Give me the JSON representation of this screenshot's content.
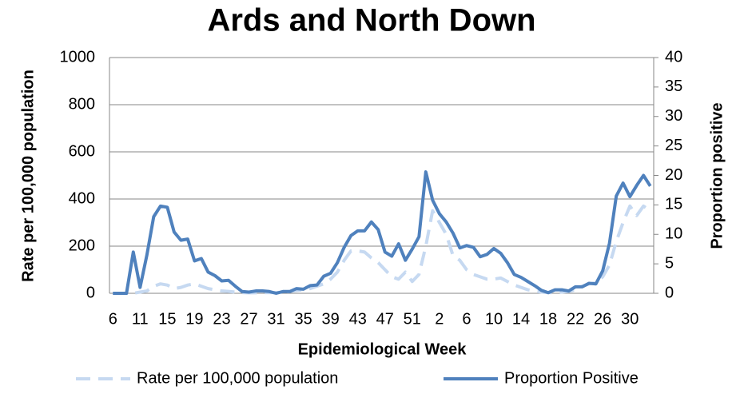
{
  "chart_data": {
    "type": "line",
    "title": "Ards and North Down",
    "x_label": "Epidemiological Week",
    "y_label": "Rate per 100,000 population",
    "y2_label": "Proportion positive",
    "categories": [
      "6",
      null,
      null,
      null,
      "11",
      null,
      null,
      null,
      "15",
      null,
      null,
      null,
      "19",
      null,
      null,
      null,
      "23",
      null,
      null,
      null,
      "27",
      null,
      null,
      null,
      "31",
      null,
      null,
      null,
      "35",
      null,
      null,
      null,
      "39",
      null,
      null,
      null,
      "43",
      null,
      null,
      null,
      "47",
      null,
      null,
      null,
      "51",
      null,
      null,
      null,
      "2",
      null,
      null,
      null,
      "6",
      null,
      null,
      null,
      "10",
      null,
      null,
      null,
      "14",
      null,
      null,
      null,
      "18",
      null,
      null,
      null,
      "22",
      null,
      null,
      null,
      "26",
      null,
      null,
      null,
      "30",
      null,
      null,
      null
    ],
    "series": [
      {
        "name": "Rate per 100,000 population",
        "color": "#c6d9f1",
        "dashed": true,
        "values": [
          0,
          0,
          0,
          0,
          5,
          10,
          30,
          40,
          35,
          20,
          25,
          35,
          40,
          30,
          20,
          15,
          10,
          8,
          5,
          3,
          2,
          2,
          3,
          3,
          3,
          5,
          8,
          12,
          15,
          20,
          30,
          40,
          60,
          90,
          140,
          180,
          180,
          175,
          150,
          130,
          100,
          70,
          60,
          90,
          50,
          80,
          200,
          350,
          300,
          250,
          160,
          140,
          100,
          80,
          70,
          60,
          60,
          65,
          50,
          35,
          25,
          15,
          10,
          5,
          3,
          3,
          5,
          8,
          15,
          30,
          40,
          45,
          70,
          120,
          220,
          300,
          370,
          330,
          370,
          350
        ]
      },
      {
        "name": "Proportion Positive",
        "color": "#4f81bd",
        "axis": "y2",
        "values": [
          0,
          0,
          0,
          7,
          1,
          6.5,
          13,
          14.8,
          14.6,
          10.4,
          9,
          9.2,
          5.5,
          5.9,
          3.6,
          3,
          2.1,
          2.2,
          1.2,
          0.3,
          0.2,
          0.4,
          0.4,
          0.3,
          0,
          0.3,
          0.3,
          0.8,
          0.7,
          1.3,
          1.4,
          2.9,
          3.4,
          5.2,
          7.8,
          9.8,
          10.6,
          10.6,
          12.1,
          10.8,
          7,
          6.3,
          8.4,
          5.6,
          7.5,
          9.6,
          20.6,
          15.8,
          13.5,
          12.1,
          10.2,
          7.7,
          8.1,
          7.8,
          6.2,
          6.6,
          7.6,
          6.8,
          5.2,
          3.2,
          2.7,
          2,
          1.3,
          0.5,
          0.1,
          0.6,
          0.6,
          0.4,
          1.1,
          1.1,
          1.7,
          1.6,
          3.8,
          8.5,
          16.5,
          18.7,
          16.4,
          18.3,
          20,
          18.2
        ]
      }
    ],
    "ylim": [
      0,
      1000
    ],
    "yticks": [
      0,
      200,
      400,
      600,
      800,
      1000
    ],
    "y2lim": [
      0,
      40
    ],
    "y2ticks": [
      0,
      5,
      10,
      15,
      20,
      25,
      30,
      35,
      40
    ],
    "grid": true,
    "legend": "bottom"
  }
}
